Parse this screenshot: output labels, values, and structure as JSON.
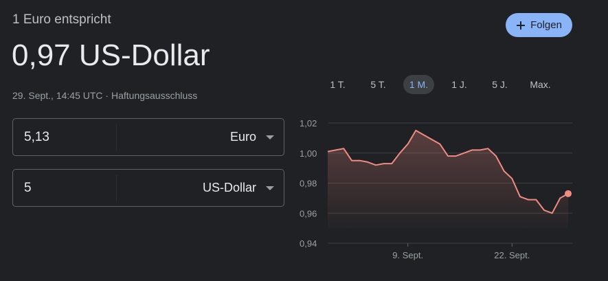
{
  "header": {
    "subtitle": "1 Euro entspricht",
    "result": "0,97 US-Dollar",
    "timestamp": "29. Sept., 14:45 UTC",
    "separator": "·",
    "disclaimer": "Haftungsausschluss"
  },
  "follow_button": "Folgen",
  "converter": [
    {
      "amount": "5,13",
      "currency": "Euro"
    },
    {
      "amount": "5",
      "currency": "US-Dollar"
    }
  ],
  "ranges": {
    "options": [
      "1 T.",
      "5 T.",
      "1 M.",
      "1 J.",
      "5 J.",
      "Max."
    ],
    "selected": 2
  },
  "chart_data": {
    "type": "line",
    "color": "#f28b82",
    "categories": [
      null,
      null,
      null,
      null,
      null,
      null,
      null,
      null,
      null,
      null,
      "9. Sept.",
      null,
      null,
      null,
      null,
      null,
      null,
      null,
      null,
      null,
      null,
      null,
      null,
      "22. Sept.",
      null,
      null,
      null,
      null,
      null,
      null,
      null
    ],
    "values": [
      1.001,
      1.002,
      1.003,
      0.995,
      0.995,
      0.994,
      0.992,
      0.993,
      0.993,
      1.0,
      1.006,
      1.015,
      1.012,
      1.009,
      1.006,
      0.998,
      0.998,
      1.0,
      1.002,
      1.002,
      1.003,
      0.998,
      0.988,
      0.983,
      0.971,
      0.969,
      0.969,
      0.962,
      0.96,
      0.97,
      0.973
    ],
    "ylim": [
      0.94,
      1.02
    ],
    "yticks": [
      {
        "value": 0.94,
        "label": "0,94"
      },
      {
        "value": 0.96,
        "label": "0,96"
      },
      {
        "value": 0.98,
        "label": "0,98"
      },
      {
        "value": 1.0,
        "label": "1,00"
      },
      {
        "value": 1.02,
        "label": "1,02"
      }
    ],
    "grid": true
  }
}
